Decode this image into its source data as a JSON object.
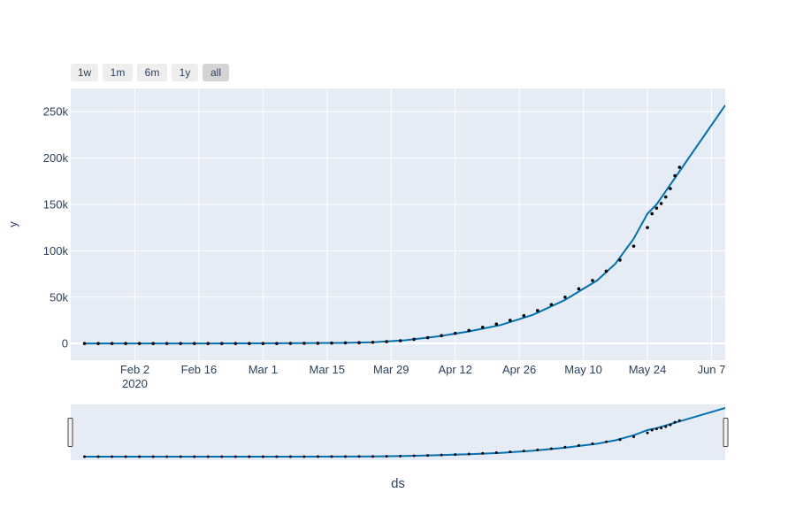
{
  "range_selector": {
    "buttons": [
      "1w",
      "1m",
      "6m",
      "1y",
      "all"
    ],
    "active": "all"
  },
  "colors": {
    "plot_bg": "#e5ecf6",
    "grid": "#ffffff",
    "forecast_line": "#0072b2",
    "actual_points": "#000000",
    "text": "#2a3f5f"
  },
  "chart_data": {
    "type": "line",
    "title": "",
    "xlabel": "ds",
    "ylabel": "y",
    "x_range": [
      "2020-01-19",
      "2020-06-10"
    ],
    "ylim": [
      -18000,
      275000
    ],
    "x_ticks": [
      {
        "date": "2020-02-02",
        "label": "Feb 2",
        "sublabel": "2020"
      },
      {
        "date": "2020-02-16",
        "label": "Feb 16"
      },
      {
        "date": "2020-03-01",
        "label": "Mar 1"
      },
      {
        "date": "2020-03-15",
        "label": "Mar 15"
      },
      {
        "date": "2020-03-29",
        "label": "Mar 29"
      },
      {
        "date": "2020-04-12",
        "label": "Apr 12"
      },
      {
        "date": "2020-04-26",
        "label": "Apr 26"
      },
      {
        "date": "2020-05-10",
        "label": "May 10"
      },
      {
        "date": "2020-05-24",
        "label": "May 24"
      },
      {
        "date": "2020-06-07",
        "label": "Jun 7"
      }
    ],
    "y_ticks": [
      {
        "value": 0,
        "label": "0"
      },
      {
        "value": 50000,
        "label": "50k"
      },
      {
        "value": 100000,
        "label": "100k"
      },
      {
        "value": 150000,
        "label": "150k"
      },
      {
        "value": 200000,
        "label": "200k"
      },
      {
        "value": 250000,
        "label": "250k"
      }
    ],
    "grid": true,
    "series": [
      {
        "kind": "markers",
        "x": [
          "2020-01-22",
          "2020-01-25",
          "2020-01-28",
          "2020-01-31",
          "2020-02-03",
          "2020-02-06",
          "2020-02-09",
          "2020-02-12",
          "2020-02-15",
          "2020-02-18",
          "2020-02-21",
          "2020-02-24",
          "2020-02-27",
          "2020-03-01",
          "2020-03-04",
          "2020-03-07",
          "2020-03-10",
          "2020-03-13",
          "2020-03-16",
          "2020-03-19",
          "2020-03-22",
          "2020-03-25",
          "2020-03-28",
          "2020-03-31",
          "2020-04-03",
          "2020-04-06",
          "2020-04-09",
          "2020-04-12",
          "2020-04-15",
          "2020-04-18",
          "2020-04-21",
          "2020-04-24",
          "2020-04-27",
          "2020-04-30",
          "2020-05-03",
          "2020-05-06",
          "2020-05-09",
          "2020-05-12",
          "2020-05-15",
          "2020-05-18",
          "2020-05-21",
          "2020-05-24",
          "2020-05-25",
          "2020-05-26",
          "2020-05-27",
          "2020-05-28",
          "2020-05-29",
          "2020-05-30",
          "2020-05-31"
        ],
        "y": [
          0,
          0,
          0,
          0,
          0,
          0,
          0,
          0,
          0,
          0,
          0,
          0,
          0,
          0,
          0,
          100,
          200,
          300,
          500,
          700,
          900,
          1300,
          2000,
          3000,
          4500,
          6300,
          8500,
          11000,
          14000,
          17500,
          21000,
          25000,
          30000,
          35500,
          42000,
          50000,
          59000,
          68000,
          78000,
          90000,
          105000,
          125000,
          140000,
          146000,
          151000,
          158000,
          167000,
          181000,
          190000
        ]
      },
      {
        "kind": "line",
        "x": [
          "2020-01-22",
          "2020-02-05",
          "2020-02-19",
          "2020-03-04",
          "2020-03-18",
          "2020-03-25",
          "2020-04-01",
          "2020-04-08",
          "2020-04-15",
          "2020-04-22",
          "2020-04-29",
          "2020-05-06",
          "2020-05-13",
          "2020-05-17",
          "2020-05-21",
          "2020-05-24",
          "2020-05-26",
          "2020-06-10"
        ],
        "y": [
          0,
          0,
          0,
          200,
          600,
          1300,
          3500,
          7500,
          13000,
          20000,
          31000,
          47000,
          68000,
          86000,
          113000,
          140000,
          150000,
          257000
        ]
      }
    ]
  },
  "range_slider": {
    "xlabel": "ds"
  }
}
